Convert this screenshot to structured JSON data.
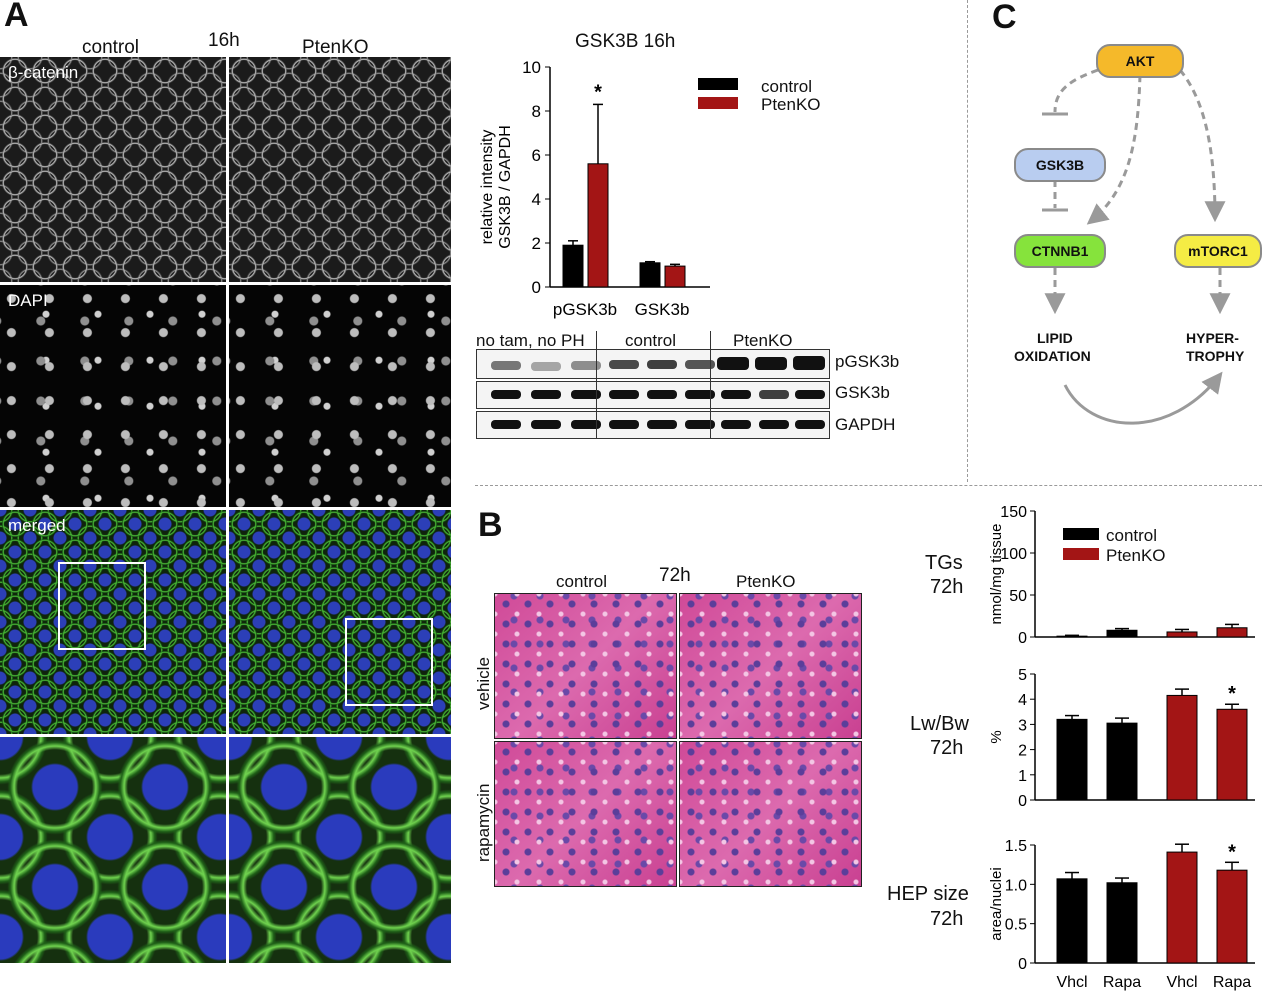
{
  "panel_letters": {
    "a": "A",
    "b": "B",
    "c": "C"
  },
  "panel_a": {
    "col_control": "control",
    "col_time": "16h",
    "col_ptenko": "PtenKO",
    "row_bcatenin": "β-catenin",
    "row_dapi": "DAPI",
    "row_merged": "merged"
  },
  "gsk_chart": {
    "title": "GSK3B  16h",
    "legend_control": "control",
    "legend_ptenko": "PtenKO",
    "star": "*"
  },
  "western_blot": {
    "group_notam": "no tam, no PH",
    "group_control": "control",
    "group_ptenko": "PtenKO",
    "row_pgsk3b": "pGSK3b",
    "row_gsk3b": "GSK3b",
    "row_gapdh": "GAPDH"
  },
  "panel_b": {
    "col_control": "control",
    "col_time": "72h",
    "col_ptenko": "PtenKO",
    "row_vehicle": "vehicle",
    "row_rapamycin": "rapamycin",
    "legend_control": "control",
    "legend_ptenko": "PtenKO",
    "tg_label_1": "TGs",
    "tg_label_2": "72h",
    "lw_label_1": "Lw/Bw",
    "lw_label_2": "72h",
    "hep_label_1": "HEP size",
    "hep_label_2": "72h",
    "star": "*"
  },
  "pathway": {
    "akt": "AKT",
    "gsk3b": "GSK3B",
    "ctnnb1": "CTNNB1",
    "mtorc1": "mTORC1",
    "lipid_1": "LIPID",
    "lipid_2": "OXIDATION",
    "hyper_1": "HYPER-",
    "hyper_2": "TROPHY",
    "colors": {
      "akt": "#f5b92a",
      "gsk3b": "#b9cdf0",
      "ctnnb1": "#86e33c",
      "mtorc1": "#f5ec44",
      "arrow": "#9a9a9a"
    }
  },
  "chart_data": [
    {
      "type": "bar",
      "title": "GSK3B  16h",
      "ylabel": "relative intensity GSK3B / GAPDH",
      "categories": [
        "pGSK3b",
        "GSK3b"
      ],
      "series": [
        {
          "name": "control",
          "values": [
            1.9,
            1.1
          ],
          "errors": [
            0.2,
            0.05
          ],
          "color": "#000000"
        },
        {
          "name": "PtenKO",
          "values": [
            5.6,
            0.95
          ],
          "errors": [
            2.7,
            0.08
          ],
          "color": "#a31515"
        }
      ],
      "ylim": [
        0,
        10
      ],
      "yticks": [
        "0",
        "2",
        "4",
        "6",
        "8",
        "10"
      ],
      "legend": "top-right"
    },
    {
      "type": "bar",
      "ylabel": "nmol/mg tissue",
      "categories": [
        "Vhcl",
        "Rapa",
        "Vhcl",
        "Rapa"
      ],
      "values": [
        1,
        8,
        6,
        11
      ],
      "errors": [
        1,
        2,
        3,
        4
      ],
      "colors": [
        "#000000",
        "#000000",
        "#a31515",
        "#a31515"
      ],
      "ylim": [
        0,
        150
      ],
      "yticks": [
        "0",
        "50",
        "100",
        "150"
      ],
      "legend": "top-left"
    },
    {
      "type": "bar",
      "ylabel": "%",
      "categories": [
        "Vhcl",
        "Rapa",
        "Vhcl",
        "Rapa"
      ],
      "values": [
        3.2,
        3.05,
        4.15,
        3.6
      ],
      "errors": [
        0.15,
        0.2,
        0.25,
        0.2
      ],
      "colors": [
        "#000000",
        "#000000",
        "#a31515",
        "#a31515"
      ],
      "ylim": [
        0,
        5
      ],
      "yticks": [
        "0",
        "1",
        "2",
        "3",
        "4",
        "5"
      ],
      "star_index": 3
    },
    {
      "type": "bar",
      "ylabel": "area/nuclei",
      "categories": [
        "Vhcl",
        "Rapa",
        "Vhcl",
        "Rapa"
      ],
      "values": [
        1.07,
        1.02,
        1.41,
        1.18
      ],
      "errors": [
        0.08,
        0.06,
        0.1,
        0.1
      ],
      "colors": [
        "#000000",
        "#000000",
        "#a31515",
        "#a31515"
      ],
      "ylim": [
        0,
        1.5
      ],
      "yticks": [
        "0",
        "0.5",
        "1.0",
        "1.5"
      ],
      "star_index": 3
    }
  ]
}
